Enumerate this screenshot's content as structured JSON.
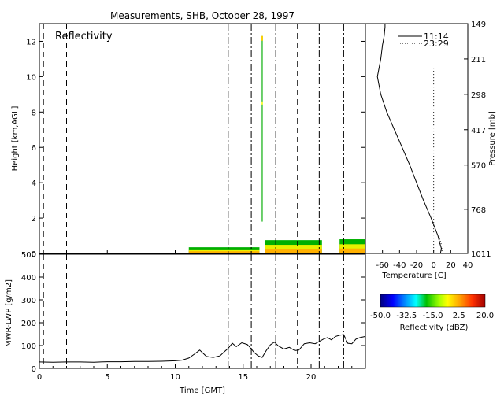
{
  "title": "Measurements, SHB, October 28, 1997",
  "chart_data": [
    {
      "type": "heatmap",
      "panel_label": "Reflectivity",
      "ylabel": "Height [km,AGL]",
      "ylim": [
        0,
        13
      ],
      "yticks": [
        "0",
        "2",
        "4",
        "6",
        "8",
        "10",
        "12"
      ],
      "xlim": [
        0,
        24
      ],
      "echo_bands": [
        {
          "x_start": 11.0,
          "x_end": 16.2,
          "top_km": 0.35
        },
        {
          "x_start": 16.6,
          "x_end": 20.8,
          "top_km": 0.75
        },
        {
          "x_start": 22.1,
          "x_end": 24.0,
          "top_km": 0.8
        }
      ],
      "echo_column": {
        "x": 16.4,
        "y_bottom": 1.8,
        "y_top": 12.3
      },
      "dashed_times": [
        0.3,
        2.0,
        19.0
      ],
      "dashdot_times": [
        13.9,
        15.6,
        17.4,
        20.6,
        22.4
      ]
    },
    {
      "type": "line",
      "ylabel": "MWR-LWP [g/m2]",
      "xlabel": "Time [GMT]",
      "xlim": [
        0,
        24
      ],
      "ylim": [
        0,
        500
      ],
      "xticks": [
        "0",
        "5",
        "10",
        "15",
        "20"
      ],
      "yticks": [
        "0",
        "100",
        "200",
        "300",
        "400",
        "500"
      ],
      "x": [
        0,
        1,
        2,
        3,
        4,
        5,
        6,
        7,
        8,
        9,
        10,
        10.5,
        11,
        11.4,
        11.8,
        12.3,
        12.8,
        13.3,
        13.6,
        13.9,
        14.2,
        14.5,
        14.9,
        15.3,
        15.5,
        15.8,
        16.1,
        16.4,
        16.7,
        17.0,
        17.3,
        17.6,
        18.0,
        18.4,
        18.8,
        19.1,
        19.5,
        19.9,
        20.3,
        20.6,
        20.9,
        21.2,
        21.5,
        21.8,
        22.1,
        22.4,
        22.7,
        23.0,
        23.3,
        23.6,
        24.0
      ],
      "values": [
        28,
        27,
        28,
        28,
        27,
        29,
        29,
        30,
        30,
        31,
        33,
        36,
        45,
        62,
        80,
        52,
        48,
        55,
        72,
        88,
        110,
        95,
        112,
        105,
        92,
        70,
        55,
        48,
        78,
        103,
        115,
        98,
        85,
        92,
        78,
        80,
        108,
        112,
        108,
        118,
        128,
        135,
        125,
        140,
        145,
        148,
        110,
        108,
        128,
        135,
        140
      ],
      "dashed_times": [
        0.3,
        2.0,
        19.0
      ],
      "dashdot_times": [
        13.9,
        15.6,
        17.4,
        20.6,
        22.4
      ]
    },
    {
      "type": "line",
      "xlabel": "Temperature [C]",
      "ylabel": "Pressure [mb]",
      "xlim": [
        -80,
        40
      ],
      "xticks": [
        "-60",
        "-40",
        "-20",
        "0",
        "20",
        "40"
      ],
      "pressure_ticks": [
        "149",
        "211",
        "298",
        "417",
        "570",
        "768",
        "1011"
      ],
      "pressure_tick_heights_km": [
        13,
        11,
        9,
        7,
        5,
        2.5,
        0
      ],
      "series": [
        {
          "name": "11:14",
          "style": "solid",
          "height_km": [
            0,
            0.3,
            0.6,
            1.0,
            2.0,
            3.0,
            4.0,
            5.0,
            6.0,
            7.0,
            8.0,
            9.0,
            10.0,
            11.0,
            11.8,
            12.3,
            12.8,
            13.0
          ],
          "temp_c": [
            8,
            9,
            7,
            5,
            -3,
            -12,
            -20,
            -28,
            -37,
            -46,
            -55,
            -62,
            -66,
            -62,
            -60,
            -58,
            -57,
            -57
          ]
        },
        {
          "name": "23:29",
          "style": "dotted",
          "height_km": [
            0,
            0.5,
            1.0
          ],
          "temp_c": [
            10,
            9,
            6
          ]
        }
      ],
      "reference_line_temp": 0
    },
    {
      "type": "colorbar",
      "label": "Reflectivity (dBZ)",
      "ticks": [
        "-50.0",
        "-32.5",
        "-15.0",
        "2.5",
        "20.0"
      ],
      "range": [
        -50,
        20
      ]
    }
  ]
}
